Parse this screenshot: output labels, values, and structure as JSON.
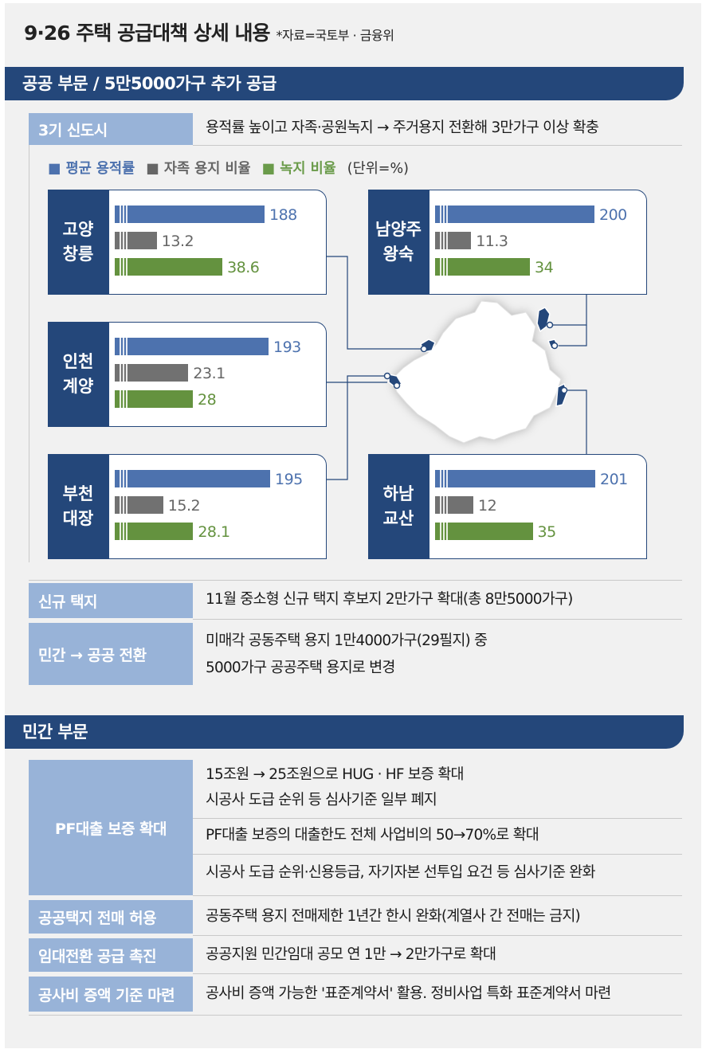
{
  "header": {
    "title": "9·26 주택 공급대책 상세 내용",
    "source": "*자료=국토부 · 금융위"
  },
  "public_sector": {
    "title": "공공 부문 / 5만5000가구 추가 공급",
    "new_town": {
      "label": "3기 신도시",
      "text": "용적률 높이고 자족·공원녹지 → 주거용지 전환해 3만가구 이상 확충"
    },
    "legend": {
      "avg_far": "■ 평균 용적률",
      "self_sufficient": "■ 자족 용지 비율",
      "green_space": "■ 녹지 비율",
      "unit": "(단위=%)"
    },
    "new_land": {
      "label": "신규 택지",
      "text": "11월 중소형 신규 택지 후보지 2만가구 확대(총 8만5000가구)"
    },
    "conversion": {
      "label": "민간 → 공공 전환",
      "line1": "미매각 공동주택 용지 1만4000가구(29필지) 중",
      "line2": "5000가구 공공주택 용지로 변경"
    }
  },
  "private_sector": {
    "title": "민간 부문",
    "pf": {
      "label": "PF대출 보증 확대",
      "line1": "15조원 → 25조원으로 HUG · HF 보증 확대",
      "line2": "시공사 도급 순위 등 심사기준 일부 폐지",
      "line3": "PF대출 보증의 대출한도 전체 사업비의 50→70%로 확대",
      "line4": "시공사 도급 순위·신용등급, 자기자본 선투입 요건 등 심사기준 완화"
    },
    "resale": {
      "label": "공공택지 전매 허용",
      "text": "공동주택 용지 전매제한 1년간 한시 완화(계열사 간 전매는 금지)"
    },
    "rental": {
      "label": "임대전환 공급 촉진",
      "text": "공공지원 민간임대 공모 연 1만 → 2만가구로 확대"
    },
    "cost": {
      "label": "공사비 증액 기준 마련",
      "text": "공사비 증액 가능한 '표준계약서' 활용. 정비사업 특화 표준계약서 마련"
    }
  },
  "colors": {
    "navy": "#24477a",
    "label_blue": "#98b3d8",
    "bar_blue": "#4d72ae",
    "bar_gray": "#717171",
    "bar_green": "#64923f"
  },
  "chart_data": {
    "type": "bar",
    "unit": "(단위=%)",
    "series_names": [
      "평균 용적률",
      "자족 용지 비율",
      "녹지 비율"
    ],
    "cities": [
      {
        "name_line1": "고양",
        "name_line2": "창릉",
        "far": 188,
        "self": 13.2,
        "green": 38.6,
        "far_label": "188",
        "self_label": "13.2",
        "green_label": "38.6"
      },
      {
        "name_line1": "남양주",
        "name_line2": "왕숙",
        "far": 200,
        "self": 11.3,
        "green": 34,
        "far_label": "200",
        "self_label": "11.3",
        "green_label": "34"
      },
      {
        "name_line1": "인천",
        "name_line2": "계양",
        "far": 193,
        "self": 23.1,
        "green": 28,
        "far_label": "193",
        "self_label": "23.1",
        "green_label": "28"
      },
      {
        "name_line1": "부천",
        "name_line2": "대장",
        "far": 195,
        "self": 15.2,
        "green": 28.1,
        "far_label": "195",
        "self_label": "15.2",
        "green_label": "28.1"
      },
      {
        "name_line1": "하남",
        "name_line2": "교산",
        "far": 201,
        "self": 12,
        "green": 35,
        "far_label": "201",
        "self_label": "12",
        "green_label": "35"
      }
    ]
  }
}
